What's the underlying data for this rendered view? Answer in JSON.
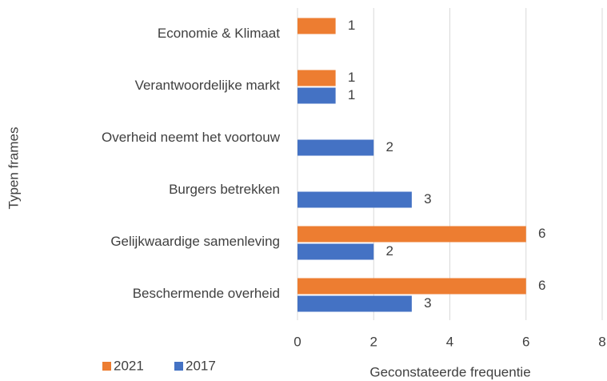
{
  "chart_data": {
    "type": "hbar",
    "categories": [
      "Economie & Klimaat",
      "Verantwoordelijke markt",
      "Overheid neemt het voortouw",
      "Burgers betrekken",
      "Gelijkwaardige samenleving",
      "Beschermende overheid"
    ],
    "series": [
      {
        "name": "2021",
        "color": "#ed7d31",
        "values": [
          1,
          1,
          null,
          null,
          6,
          6
        ]
      },
      {
        "name": "2017",
        "color": "#4472c4",
        "values": [
          null,
          1,
          2,
          3,
          2,
          3
        ]
      }
    ],
    "xlabel": "Geconstateerde frequentie",
    "ylabel": "Typen frames",
    "xlim": [
      0,
      8
    ],
    "xticks": [
      0,
      2,
      4,
      6,
      8
    ],
    "grid": true,
    "legend": "bottom-left"
  }
}
